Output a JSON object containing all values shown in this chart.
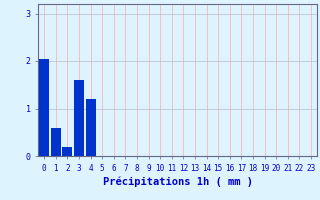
{
  "values": [
    2.05,
    0.6,
    0.2,
    1.6,
    1.2,
    0,
    0,
    0,
    0,
    0,
    0,
    0,
    0,
    0,
    0,
    0,
    0,
    0,
    0,
    0,
    0,
    0,
    0,
    0
  ],
  "bar_color": "#0033cc",
  "bg_color": "#ddf4ff",
  "grid_color": "#bbbbcc",
  "grid_color_major": "#cc9999",
  "xlabel": "Précipitations 1h ( mm )",
  "xlabel_color": "#0000cc",
  "tick_color": "#0000cc",
  "axis_color": "#666688",
  "ylim": [
    0,
    3.2
  ],
  "yticks": [
    0,
    1,
    2,
    3
  ],
  "xlabel_fontsize": 7.5,
  "tick_fontsize": 5.5
}
